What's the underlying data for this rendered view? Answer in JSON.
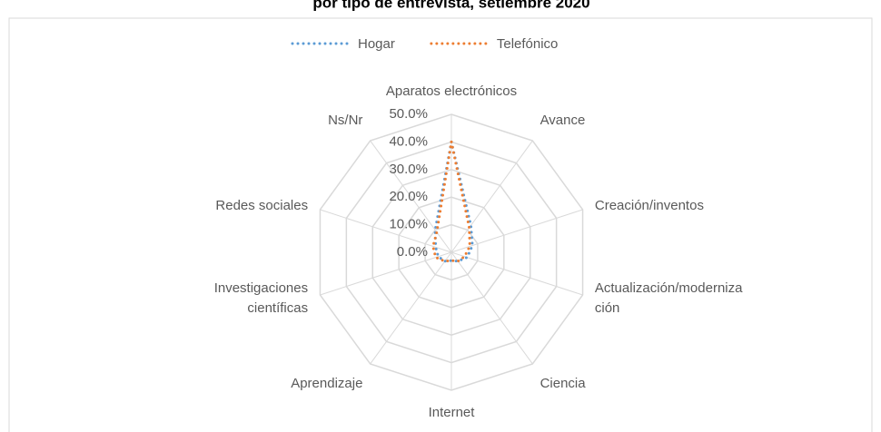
{
  "chart_data": {
    "type": "radar",
    "title": "por tipo de entrevista, setiembre 2020",
    "categories": [
      "Aparatos electrónicos",
      "Avance",
      "Creación/inventos",
      "Actualización/modernización",
      "Ciencia",
      "Internet",
      "Aprendizaje",
      "Investigaciones científicas",
      "Redes sociales",
      "Ns/Nr"
    ],
    "series": [
      {
        "name": "Hogar",
        "color": "#5b9bd5",
        "values": [
          40,
          12,
          8,
          6,
          4,
          3,
          4,
          5,
          6,
          10
        ]
      },
      {
        "name": "Telefónico",
        "color": "#ed7d31",
        "values": [
          40,
          11,
          7,
          5,
          4,
          3,
          4,
          6,
          7,
          9
        ]
      }
    ],
    "ylim": [
      0,
      50
    ],
    "yticks": [
      {
        "value": 0,
        "label": "0.0%"
      },
      {
        "value": 10,
        "label": "10.0%"
      },
      {
        "value": 20,
        "label": "20.0%"
      },
      {
        "value": 30,
        "label": "30.0%"
      },
      {
        "value": 40,
        "label": "40.0%"
      },
      {
        "value": 50,
        "label": "50.0%"
      }
    ],
    "grid": true,
    "legend": "top"
  }
}
